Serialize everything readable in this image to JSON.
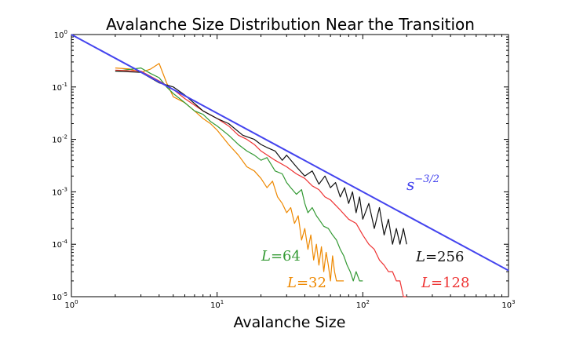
{
  "chart_data": {
    "type": "line",
    "title": "Avalanche Size Distribution Near the Transition",
    "xlabel": "Avalanche Size",
    "ylabel": "",
    "xscale": "log",
    "yscale": "log",
    "xlim": [
      1,
      1000
    ],
    "ylim": [
      1e-05,
      1
    ],
    "grid": false,
    "x_ticks": [
      {
        "value": 1,
        "base": "10",
        "exp": "0"
      },
      {
        "value": 10,
        "base": "10",
        "exp": "1"
      },
      {
        "value": 100,
        "base": "10",
        "exp": "2"
      },
      {
        "value": 1000,
        "base": "10",
        "exp": "3"
      }
    ],
    "y_ticks": [
      {
        "value": 1,
        "base": "10",
        "exp": "0"
      },
      {
        "value": 0.1,
        "base": "10",
        "exp": "-1"
      },
      {
        "value": 0.01,
        "base": "10",
        "exp": "-2"
      },
      {
        "value": 0.001,
        "base": "10",
        "exp": "-3"
      },
      {
        "value": 0.0001,
        "base": "10",
        "exp": "-4"
      },
      {
        "value": 1e-05,
        "base": "10",
        "exp": "-5"
      }
    ],
    "reference_line": {
      "label_base": "s",
      "label_exp": "−3/2",
      "exponent": -1.5,
      "color": "#4444ee",
      "x": [
        1,
        1000
      ],
      "y": [
        1,
        3.16e-05
      ]
    },
    "series": [
      {
        "name": "L=32",
        "label_var": "L",
        "label_eq": "=",
        "label_num": "32",
        "color": "#ee8800",
        "x": [
          2,
          2.5,
          3,
          3.5,
          4,
          4.5,
          5,
          6,
          7,
          8,
          9,
          10,
          12,
          14,
          16,
          18,
          20,
          22,
          24,
          26,
          28,
          30,
          32,
          34,
          36,
          38,
          40,
          42,
          44,
          46,
          48,
          50,
          52,
          54,
          56,
          58,
          60,
          62,
          64,
          66,
          70,
          74
        ],
        "y": [
          0.23,
          0.22,
          0.19,
          0.22,
          0.28,
          0.12,
          0.065,
          0.05,
          0.035,
          0.025,
          0.02,
          0.015,
          0.008,
          0.005,
          0.003,
          0.0025,
          0.0018,
          0.0012,
          0.0016,
          0.0008,
          0.0006,
          0.0004,
          0.0005,
          0.00025,
          0.00035,
          0.00012,
          0.0002,
          8e-05,
          0.00015,
          5e-05,
          0.0001,
          4e-05,
          9e-05,
          3e-05,
          7e-05,
          4e-05,
          2e-05,
          6e-05,
          3e-05,
          2e-05,
          2e-05,
          2e-05
        ]
      },
      {
        "name": "L=64",
        "label_var": "L",
        "label_eq": "=",
        "label_num": "64",
        "color": "#339933",
        "x": [
          2,
          3,
          3.5,
          4,
          4.5,
          5,
          6,
          7,
          8,
          9,
          10,
          12,
          14,
          16,
          18,
          20,
          22,
          25,
          28,
          30,
          32,
          35,
          38,
          40,
          42,
          45,
          48,
          50,
          54,
          58,
          62,
          66,
          70,
          74,
          78,
          82,
          86,
          90,
          95,
          100
        ],
        "y": [
          0.2,
          0.23,
          0.18,
          0.15,
          0.1,
          0.075,
          0.05,
          0.035,
          0.03,
          0.022,
          0.018,
          0.012,
          0.008,
          0.006,
          0.005,
          0.004,
          0.0045,
          0.0025,
          0.0022,
          0.0015,
          0.0012,
          0.0009,
          0.0011,
          0.0006,
          0.0004,
          0.0005,
          0.00035,
          0.0003,
          0.00022,
          0.0002,
          0.00015,
          0.00012,
          8e-05,
          6e-05,
          4e-05,
          3e-05,
          2e-05,
          3e-05,
          2e-05,
          2e-05
        ]
      },
      {
        "name": "L=128",
        "label_var": "L",
        "label_eq": "=",
        "label_num": "128",
        "color": "#ee3333",
        "x": [
          2,
          3,
          4,
          5,
          6,
          7,
          8,
          10,
          12,
          14,
          16,
          18,
          20,
          25,
          30,
          35,
          40,
          45,
          50,
          55,
          60,
          70,
          80,
          90,
          100,
          110,
          120,
          130,
          140,
          150,
          160,
          170,
          180,
          190,
          200
        ],
        "y": [
          0.21,
          0.2,
          0.13,
          0.09,
          0.06,
          0.045,
          0.035,
          0.025,
          0.018,
          0.012,
          0.01,
          0.008,
          0.006,
          0.004,
          0.003,
          0.0022,
          0.0018,
          0.0013,
          0.0011,
          0.0008,
          0.0007,
          0.00045,
          0.0003,
          0.00025,
          0.00015,
          0.0001,
          8e-05,
          5e-05,
          4e-05,
          3e-05,
          3e-05,
          2e-05,
          2e-05,
          1e-05,
          1e-05
        ]
      },
      {
        "name": "L=256",
        "label_var": "L",
        "label_eq": "=",
        "label_num": "256",
        "color": "#111111",
        "x": [
          2,
          3,
          4,
          5,
          6,
          8,
          10,
          12,
          15,
          18,
          20,
          22,
          25,
          28,
          30,
          35,
          40,
          45,
          50,
          55,
          60,
          65,
          70,
          75,
          80,
          85,
          90,
          95,
          100,
          110,
          120,
          130,
          140,
          150,
          160,
          170,
          180,
          190,
          200
        ],
        "y": [
          0.2,
          0.19,
          0.12,
          0.1,
          0.07,
          0.035,
          0.025,
          0.02,
          0.012,
          0.01,
          0.008,
          0.007,
          0.006,
          0.004,
          0.005,
          0.003,
          0.002,
          0.0025,
          0.0014,
          0.002,
          0.0012,
          0.0015,
          0.0008,
          0.0012,
          0.0006,
          0.001,
          0.0004,
          0.0008,
          0.0003,
          0.0006,
          0.0002,
          0.0005,
          0.00015,
          0.0003,
          0.0001,
          0.0002,
          0.0001,
          0.0002,
          0.0001
        ]
      }
    ]
  }
}
